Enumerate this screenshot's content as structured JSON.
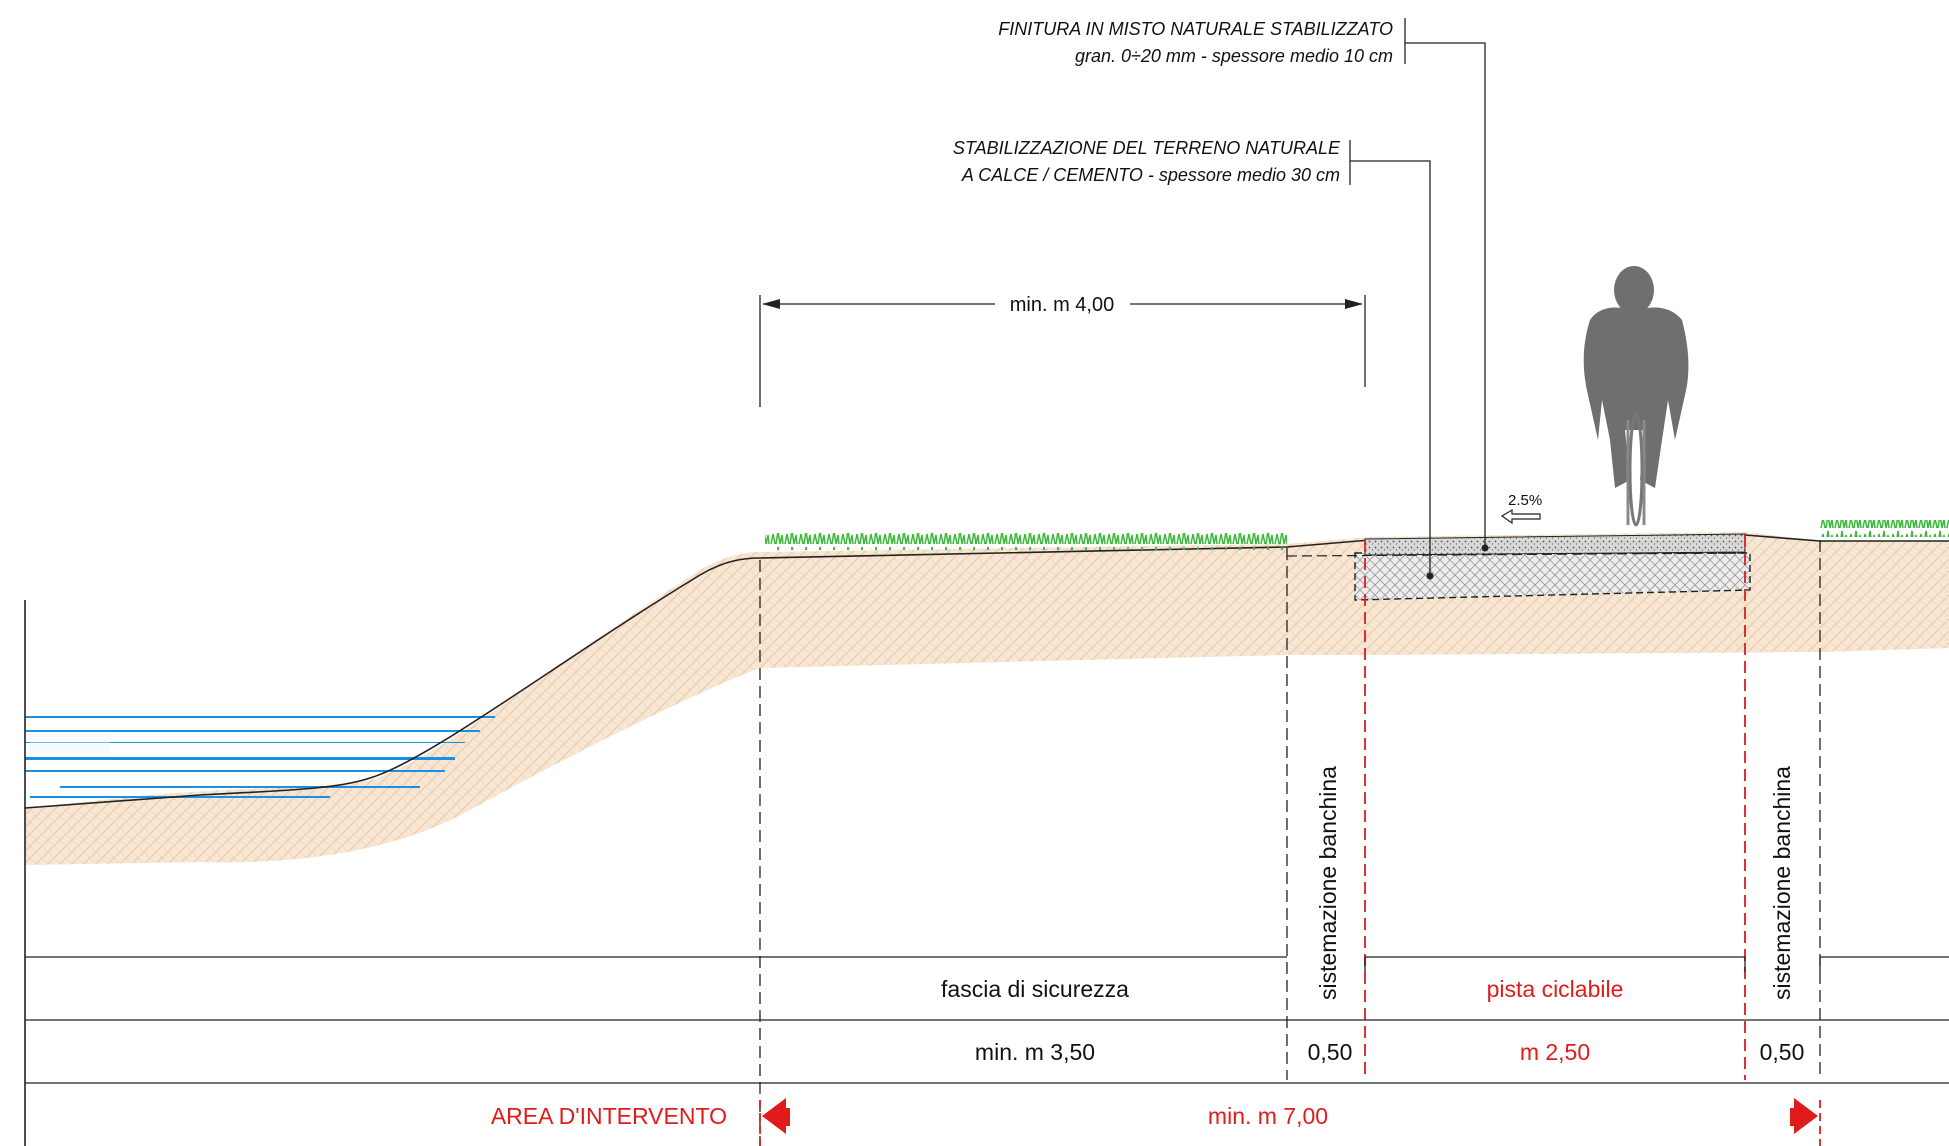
{
  "notes": {
    "finitura_line1": "FINITURA IN MISTO NATURALE STABILIZZATO",
    "finitura_line2": "gran. 0÷20 mm - spessore medio 10 cm",
    "stabilizzazione_line1": "STABILIZZAZIONE DEL TERRENO NATURALE",
    "stabilizzazione_line2": "A CALCE / CEMENTO - spessore medio 30 cm"
  },
  "dimensions": {
    "top_span": "min. m 4,00",
    "slope": "2.5%"
  },
  "vertical_labels": {
    "left_banchina": "sistemazione banchina",
    "right_banchina": "sistemazione banchina"
  },
  "table": {
    "row1": {
      "fascia": "fascia di sicurezza",
      "pista": "pista ciclabile"
    },
    "row2": {
      "fascia_width": "min. m 3,50",
      "banchina_left_width": "0,50",
      "pista_width": "m 2,50",
      "banchina_right_width": "0,50"
    },
    "row3": {
      "area_label": "AREA D'INTERVENTO",
      "area_width": "min. m 7,00"
    }
  },
  "colors": {
    "accent_red": "#e01b1b",
    "water_blue": "#1a8fe6",
    "grass_green": "#3cb83c",
    "soil": "#f2dcc3"
  }
}
